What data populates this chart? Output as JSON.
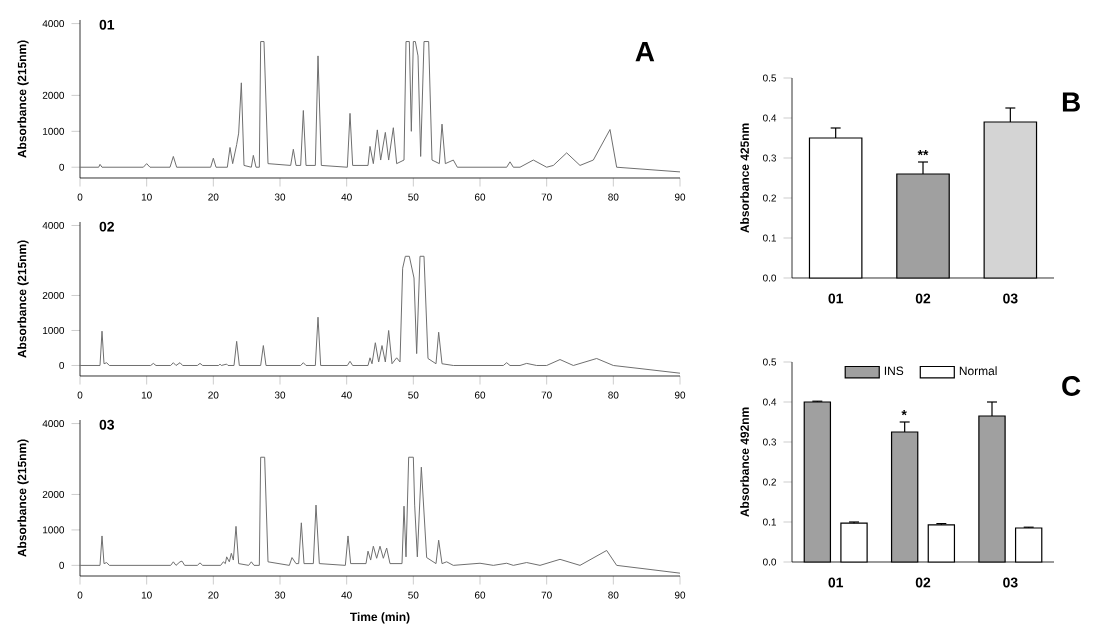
{
  "chart_data": [
    {
      "type": "line",
      "title": "01",
      "ylabel": "Absorbance (215nm)",
      "annotations": [
        "A"
      ],
      "xlim": [
        0,
        90
      ],
      "xticks": [
        0,
        10,
        20,
        30,
        40,
        50,
        60,
        70,
        80,
        90
      ],
      "ylim": [
        -300,
        4100
      ],
      "yticks": [
        0,
        1000,
        2000,
        4000
      ],
      "series": [
        {
          "color": "#6e6e6e",
          "x": [
            0,
            2.8,
            3,
            3.3,
            9.5,
            10,
            10.5,
            13.5,
            14,
            14.5,
            19.6,
            20,
            20.4,
            22.1,
            22.5,
            22.9,
            23.5,
            23.8,
            24.2,
            24.6,
            25.7,
            26,
            26.4,
            26.9,
            27.1,
            27.6,
            28.2,
            31.6,
            32,
            32.4,
            33.1,
            33.5,
            33.9,
            35.3,
            35.7,
            36.2,
            40.1,
            40.5,
            40.9,
            43.2,
            43.5,
            44,
            44.6,
            45.1,
            45.8,
            46.3,
            47,
            47.5,
            48.6,
            48.9,
            49.4,
            49.7,
            50,
            50.3,
            50.7,
            51.1,
            51.6,
            52.3,
            52.8,
            53.9,
            54.3,
            54.8,
            56,
            56.6,
            64,
            64.5,
            65,
            66,
            68,
            70,
            71,
            73,
            75,
            77,
            79.5,
            80.5,
            90
          ],
          "values": [
            0,
            0,
            80,
            0,
            0,
            100,
            0,
            0,
            300,
            0,
            0,
            250,
            0,
            0,
            550,
            100,
            630,
            950,
            2350,
            50,
            0,
            330,
            0,
            0,
            3500,
            3500,
            100,
            50,
            500,
            50,
            50,
            1580,
            50,
            50,
            3100,
            50,
            0,
            1500,
            50,
            50,
            580,
            100,
            1040,
            200,
            970,
            200,
            1100,
            100,
            200,
            3500,
            3500,
            1000,
            3500,
            3500,
            3100,
            300,
            3500,
            3500,
            200,
            100,
            1200,
            100,
            200,
            0,
            0,
            150,
            0,
            0,
            200,
            0,
            50,
            400,
            50,
            200,
            1050,
            0,
            -130
          ]
        }
      ]
    },
    {
      "type": "line",
      "title": "02",
      "ylabel": "Absorbance (215nm)",
      "xlim": [
        0,
        90
      ],
      "xticks": [
        0,
        10,
        20,
        30,
        40,
        50,
        60,
        70,
        80,
        90
      ],
      "ylim": [
        -300,
        4100
      ],
      "yticks": [
        0,
        1000,
        2000,
        4000
      ],
      "series": [
        {
          "color": "#6e6e6e",
          "x": [
            0,
            3,
            3.3,
            3.6,
            4,
            4.4,
            10.6,
            11,
            11.4,
            13.6,
            14,
            14.4,
            15,
            15.4,
            17.6,
            18,
            18.4,
            20.8,
            21,
            21.2,
            22,
            22.2,
            23.1,
            23.5,
            23.9,
            27.1,
            27.5,
            27.9,
            33.1,
            33.5,
            33.9,
            35.3,
            35.7,
            36.1,
            40.1,
            40.5,
            40.9,
            43.2,
            43.5,
            43.8,
            44.3,
            44.8,
            45.3,
            45.8,
            46.3,
            46.8,
            47.5,
            48,
            48.4,
            48.8,
            49.4,
            50.1,
            50.5,
            51,
            51.6,
            52.2,
            53.4,
            53.8,
            54.3,
            56,
            63.5,
            64,
            64.5,
            66,
            67,
            68.5,
            70,
            72,
            74,
            77.5,
            80,
            90
          ],
          "values": [
            0,
            0,
            980,
            50,
            80,
            0,
            0,
            60,
            0,
            0,
            80,
            0,
            80,
            0,
            0,
            60,
            0,
            0,
            40,
            0,
            40,
            0,
            0,
            690,
            0,
            0,
            570,
            0,
            0,
            80,
            0,
            0,
            1380,
            0,
            0,
            120,
            0,
            0,
            220,
            50,
            650,
            100,
            570,
            100,
            1000,
            50,
            220,
            100,
            2780,
            3120,
            3120,
            2500,
            340,
            3120,
            3120,
            200,
            50,
            950,
            50,
            0,
            0,
            80,
            0,
            0,
            60,
            0,
            0,
            170,
            0,
            200,
            0,
            -220
          ]
        }
      ]
    },
    {
      "type": "line",
      "title": "03",
      "xlabel": "Time (min)",
      "ylabel": "Absorbance (215nm)",
      "xlim": [
        0,
        90
      ],
      "xticks": [
        0,
        10,
        20,
        30,
        40,
        50,
        60,
        70,
        80,
        90
      ],
      "ylim": [
        -300,
        4100
      ],
      "yticks": [
        0,
        1000,
        2000,
        4000
      ],
      "series": [
        {
          "color": "#6e6e6e",
          "x": [
            0,
            3,
            3.3,
            3.6,
            4,
            4.4,
            13.6,
            14,
            14.4,
            15,
            15.3,
            15.7,
            17.6,
            18,
            18.4,
            21.1,
            21.5,
            21.8,
            22,
            22.4,
            22.7,
            23,
            23.4,
            23.8,
            25.3,
            25.7,
            26.1,
            26.9,
            27.1,
            27.7,
            28.2,
            31.4,
            31.8,
            32.4,
            32.8,
            33.2,
            33.6,
            35,
            35.4,
            35.9,
            39.8,
            40.2,
            40.6,
            42.9,
            43.2,
            43.6,
            44,
            44.5,
            45,
            45.5,
            46,
            46.5,
            48.3,
            48.6,
            48.9,
            49.3,
            50,
            50.2,
            50.6,
            51.2,
            52,
            53.4,
            53.8,
            54.3,
            55,
            56,
            60,
            62,
            64,
            65,
            67,
            69,
            72,
            75,
            79,
            80.5,
            90
          ],
          "values": [
            0,
            0,
            830,
            50,
            80,
            0,
            0,
            100,
            0,
            100,
            120,
            0,
            0,
            70,
            0,
            0,
            100,
            50,
            240,
            100,
            340,
            150,
            1100,
            50,
            0,
            100,
            0,
            0,
            3050,
            3050,
            100,
            0,
            220,
            50,
            50,
            1200,
            50,
            50,
            1700,
            50,
            0,
            830,
            50,
            50,
            400,
            150,
            540,
            200,
            540,
            200,
            490,
            50,
            50,
            1670,
            240,
            3050,
            3050,
            1700,
            240,
            2770,
            220,
            50,
            710,
            50,
            100,
            0,
            60,
            0,
            60,
            0,
            80,
            0,
            170,
            0,
            420,
            0,
            -220
          ]
        }
      ]
    },
    {
      "type": "bar",
      "ylabel": "Absorbance 425nm",
      "annotations": [
        "B",
        {
          "text": "**",
          "x": "02",
          "y": 0.29
        }
      ],
      "categories": [
        "01",
        "02",
        "03"
      ],
      "values": [
        0.35,
        0.26,
        0.39
      ],
      "errors": [
        0.025,
        0.03,
        0.035
      ],
      "colors": [
        "#ffffff",
        "#a0a0a0",
        "#d4d4d4"
      ],
      "ylim": [
        0,
        0.5
      ],
      "yticks": [
        {
          "value": 0,
          "label": "0.0"
        },
        {
          "value": 0.1,
          "label": "0.1"
        },
        {
          "value": 0.2,
          "label": "0.2"
        },
        {
          "value": 0.3,
          "label": "0.3"
        },
        {
          "value": 0.4,
          "label": "0.4"
        },
        {
          "value": 0.5,
          "label": "0.5"
        }
      ]
    },
    {
      "type": "bar",
      "ylabel": "Absorbance 492nm",
      "annotations": [
        "C",
        "*"
      ],
      "categories": [
        "01",
        "02",
        "03"
      ],
      "legend": "top",
      "ylim": [
        0,
        0.5
      ],
      "yticks": [
        {
          "value": 0,
          "label": "0.0"
        },
        {
          "value": 0.1,
          "label": "0.1"
        },
        {
          "value": 0.2,
          "label": "0.2"
        },
        {
          "value": 0.3,
          "label": "0.3"
        },
        {
          "value": 0.4,
          "label": "0.4"
        },
        {
          "value": 0.5,
          "label": "0.5"
        }
      ],
      "series": [
        {
          "name": "INS",
          "color": "#a0a0a0",
          "values": [
            0.4,
            0.325,
            0.365
          ],
          "errors": [
            0.002,
            0.025,
            0.035
          ]
        },
        {
          "name": "Normal",
          "color": "#ffffff",
          "values": [
            0.097,
            0.093,
            0.085
          ],
          "errors": [
            0.003,
            0.003,
            0.002
          ]
        }
      ]
    }
  ]
}
